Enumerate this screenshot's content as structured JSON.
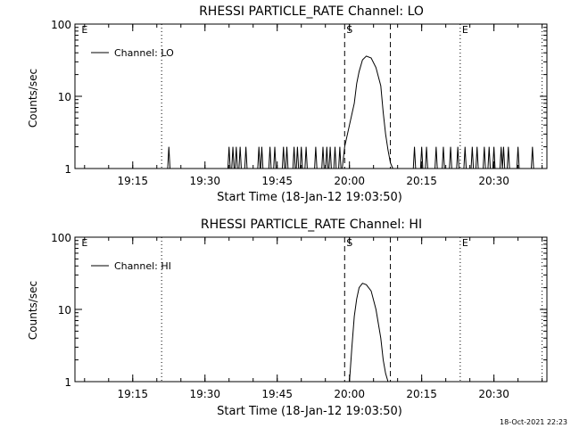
{
  "footer": {
    "timestamp": "18-Oct-2021 22:23"
  },
  "chart_data": [
    {
      "type": "line",
      "title": "RHESSI PARTICLE_RATE Channel: LO",
      "xlabel": "Start Time (18-Jan-12 19:03:50)",
      "ylabel": "Counts/sec",
      "y_scale": "log",
      "ylim": [
        1,
        100
      ],
      "y_ticks": [
        "1",
        "10",
        "100"
      ],
      "xlim": [
        "19:03:50",
        "20:41:00"
      ],
      "x_ticks": [
        "19:15",
        "19:30",
        "19:45",
        "20:00",
        "20:15",
        "20:30"
      ],
      "legend": {
        "position": "top-left",
        "entries": [
          "Channel: LO"
        ]
      },
      "markers": [
        {
          "label": "E",
          "time": "19:04",
          "style": "none"
        },
        {
          "label": "",
          "time": "19:21",
          "style": "dotted"
        },
        {
          "label": "S",
          "time": "19:59",
          "style": "dashed"
        },
        {
          "label": "",
          "time": "20:08.5",
          "style": "dashed"
        },
        {
          "label": "E",
          "time": "20:23",
          "style": "dotted"
        },
        {
          "label": "",
          "time": "20:40",
          "style": "dotted"
        }
      ],
      "series": [
        {
          "name": "Channel: LO",
          "spikes": [
            "19:22.5",
            "19:35",
            "19:35.8",
            "19:36.5",
            "19:37.3",
            "19:38.5",
            "19:41.2",
            "19:41.8",
            "19:43.5",
            "19:44.5",
            "19:46.3",
            "19:47",
            "19:48.5",
            "19:49.2",
            "19:50",
            "19:51",
            "19:53",
            "19:54.5",
            "19:55.3",
            "19:56",
            "19:57",
            "19:58",
            "20:13.5",
            "20:15",
            "20:16",
            "20:18",
            "20:19.5",
            "20:21",
            "20:22.5",
            "20:24",
            "20:25.5",
            "20:26.5",
            "20:28",
            "20:29",
            "20:30",
            "20:31.5",
            "20:32",
            "20:33",
            "20:35",
            "20:38"
          ],
          "x": [
            "19:58.5",
            "19:59",
            "20:00",
            "20:01",
            "20:01.5",
            "20:02",
            "20:02.7",
            "20:03.5",
            "20:04.5",
            "20:05.5",
            "20:06.5",
            "20:07",
            "20:07.5",
            "20:08",
            "20:08.5",
            "20:09"
          ],
          "y": [
            1,
            2,
            4,
            8,
            15,
            22,
            32,
            36,
            34,
            25,
            14,
            6,
            3,
            1.8,
            1.2,
            1
          ]
        }
      ]
    },
    {
      "type": "line",
      "title": "RHESSI PARTICLE_RATE Channel: HI",
      "xlabel": "Start Time (18-Jan-12 19:03:50)",
      "ylabel": "Counts/sec",
      "y_scale": "log",
      "ylim": [
        1,
        100
      ],
      "y_ticks": [
        "1",
        "10",
        "100"
      ],
      "xlim": [
        "19:03:50",
        "20:41:00"
      ],
      "x_ticks": [
        "19:15",
        "19:30",
        "19:45",
        "20:00",
        "20:15",
        "20:30"
      ],
      "legend": {
        "position": "top-left",
        "entries": [
          "Channel: HI"
        ]
      },
      "markers": [
        {
          "label": "E",
          "time": "19:04",
          "style": "none"
        },
        {
          "label": "",
          "time": "19:21",
          "style": "dotted"
        },
        {
          "label": "S",
          "time": "19:59",
          "style": "dashed"
        },
        {
          "label": "",
          "time": "20:08.5",
          "style": "dashed"
        },
        {
          "label": "E",
          "time": "20:23",
          "style": "dotted"
        },
        {
          "label": "",
          "time": "20:40",
          "style": "dotted"
        }
      ],
      "series": [
        {
          "name": "Channel: HI",
          "spikes": [],
          "x": [
            "20:00",
            "20:00.5",
            "20:01",
            "20:01.5",
            "20:02",
            "20:02.7",
            "20:03.5",
            "20:04.5",
            "20:05.5",
            "20:06.5",
            "20:07",
            "20:07.5",
            "20:08"
          ],
          "y": [
            1,
            3,
            8,
            14,
            20,
            23,
            22,
            18,
            10,
            4,
            2,
            1.3,
            1
          ]
        }
      ]
    }
  ]
}
